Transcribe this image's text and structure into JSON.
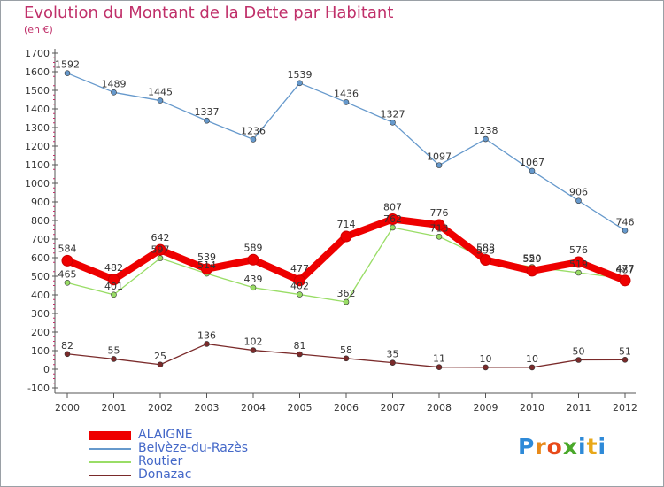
{
  "header": {
    "title": "Evolution du Montant de la Dette par Habitant",
    "subtitle": "(en €)"
  },
  "logo": {
    "text": "Proxiti",
    "letters": [
      "P",
      "r",
      "o",
      "x",
      "i",
      "t",
      "i"
    ],
    "colors": [
      "#2e8ad8",
      "#e88a1a",
      "#e84a1a",
      "#4aa82a",
      "#2e8ad8",
      "#e8a81a",
      "#2e8ad8"
    ]
  },
  "chart_data": {
    "type": "line",
    "title": "Evolution du Montant de la Dette par Habitant",
    "subtitle": "(en €)",
    "xlabel": "",
    "ylabel": "",
    "x": [
      "2000",
      "2001",
      "2002",
      "2003",
      "2004",
      "2005",
      "2006",
      "2007",
      "2008",
      "2009",
      "2010",
      "2011",
      "2012"
    ],
    "ylim": [
      -100,
      1700
    ],
    "yticks": [
      -100,
      0,
      100,
      200,
      300,
      400,
      500,
      600,
      700,
      800,
      900,
      1000,
      1100,
      1200,
      1300,
      1400,
      1500,
      1600,
      1700
    ],
    "grid": false,
    "legend": "bottom-left",
    "series": [
      {
        "name": "Belvèze-du-Razès",
        "color": "#6699cc",
        "values": [
          1592,
          1489,
          1445,
          1337,
          1236,
          1539,
          1436,
          1327,
          1097,
          1238,
          1067,
          906,
          746
        ]
      },
      {
        "name": "Routier",
        "color": "#99dd66",
        "values": [
          465,
          401,
          597,
          514,
          439,
          402,
          362,
          762,
          713,
          593,
          550,
          519,
          487
        ]
      },
      {
        "name": "Donazac",
        "color": "#7a2a2a",
        "values": [
          82,
          55,
          25,
          136,
          102,
          81,
          58,
          35,
          11,
          10,
          10,
          50,
          51
        ]
      },
      {
        "name": "ALAIGNE",
        "color": "#ee0000",
        "values": [
          584,
          482,
          642,
          539,
          589,
          477,
          714,
          807,
          776,
          588,
          529,
          576,
          477
        ]
      }
    ],
    "data_labels": [
      {
        "series": "ALAIGNE",
        "labels": [
          "584",
          "482",
          "642",
          "539",
          "589",
          "477",
          "714",
          "807",
          "776",
          "588",
          "529",
          "576",
          "477"
        ]
      },
      {
        "series": "Belvèze-du-Razès",
        "labels": [
          "1592",
          "1489",
          "1445",
          "1337",
          "1236",
          "1539",
          "1436",
          "1327",
          "1097",
          "1238",
          "1067",
          "906",
          "746"
        ]
      },
      {
        "series": "Routier",
        "labels": [
          "465",
          "401",
          "597",
          "514",
          "439",
          "402",
          "362",
          "762",
          "713",
          "593",
          "550",
          "519",
          "487"
        ]
      },
      {
        "series": "Donazac",
        "labels": [
          "82",
          "55",
          "25",
          "136",
          "102",
          "81",
          "58",
          "35",
          "11",
          "10",
          "10",
          "50",
          "51"
        ]
      }
    ]
  }
}
